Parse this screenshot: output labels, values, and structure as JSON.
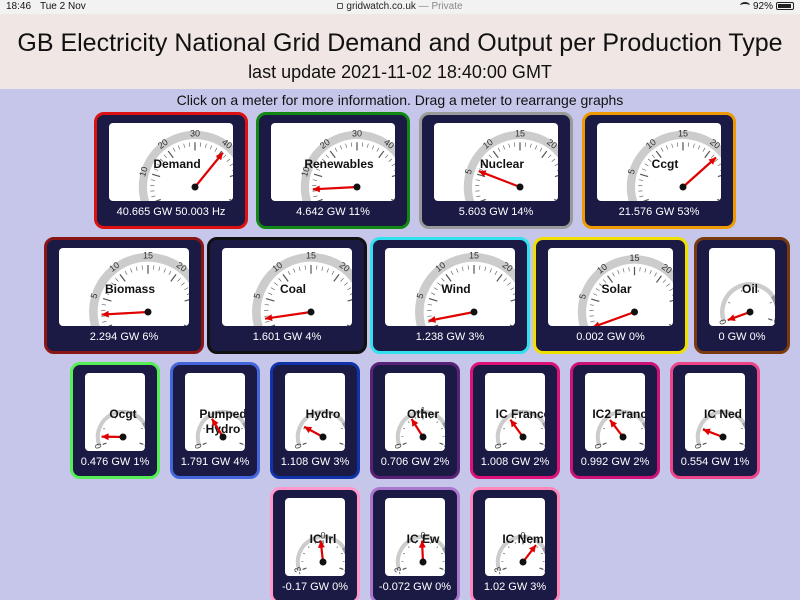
{
  "status_bar": {
    "time": "18:46",
    "date": "Tue 2 Nov",
    "url": "gridwatch.co.uk",
    "private_label": "— Private",
    "battery": "92%"
  },
  "header": {
    "title": "GB Electricity National Grid Demand and Output per Production Type",
    "subtitle": "last update 2021-11-02 18:40:00 GMT"
  },
  "instructions": "Click on a meter for more information. Drag a meter to rearrange graphs",
  "colors": {
    "page_bg": "#c5c6ea",
    "meter_bg": "#1a1a45",
    "needle": "#e00000",
    "arc_light": "#cccccc",
    "arc_dark": "#9a9a9a"
  },
  "meters": [
    {
      "id": "demand",
      "name": "Demand",
      "reading": "40.665 GW 50.003 Hz",
      "value": 40.665,
      "max": 60,
      "ticks": [
        "0",
        "10",
        "20",
        "30",
        "40",
        "50",
        "60"
      ],
      "border": "#dd1111"
    },
    {
      "id": "renewables",
      "name": "Renewables",
      "reading": "4.642 GW 11%",
      "value": 4.642,
      "max": 60,
      "ticks": [
        "0",
        "10",
        "20",
        "30",
        "40",
        "50",
        "60"
      ],
      "border": "#118811"
    },
    {
      "id": "nuclear",
      "name": "Nuclear",
      "reading": "5.603 GW 14%",
      "value": 5.603,
      "max": 30,
      "ticks": [
        "0",
        "5",
        "10",
        "15",
        "20",
        "25",
        "30"
      ],
      "border": "#9a9a9a"
    },
    {
      "id": "ccgt",
      "name": "Ccgt",
      "reading": "21.576 GW 53%",
      "value": 21.576,
      "max": 30,
      "ticks": [
        "0",
        "5",
        "10",
        "15",
        "20",
        "25",
        "30"
      ],
      "border": "#ee9900"
    },
    {
      "id": "biomass",
      "name": "Biomass",
      "reading": "2.294 GW 6%",
      "value": 2.294,
      "max": 30,
      "ticks": [
        "0",
        "5",
        "10",
        "15",
        "20",
        "25",
        "30"
      ],
      "border": "#8a1515"
    },
    {
      "id": "coal",
      "name": "Coal",
      "reading": "1.601 GW 4%",
      "value": 1.601,
      "max": 30,
      "ticks": [
        "0",
        "5",
        "10",
        "15",
        "20",
        "25",
        "30"
      ],
      "border": "#111111"
    },
    {
      "id": "wind",
      "name": "Wind",
      "reading": "1.238 GW 3%",
      "value": 1.238,
      "max": 30,
      "ticks": [
        "0",
        "5",
        "10",
        "15",
        "20",
        "25",
        "30"
      ],
      "border": "#33e0f0"
    },
    {
      "id": "solar",
      "name": "Solar",
      "reading": "0.002 GW 0%",
      "value": 0.002,
      "max": 30,
      "ticks": [
        "0",
        "5",
        "10",
        "15",
        "20",
        "25",
        "30"
      ],
      "border": "#f0e000"
    },
    {
      "id": "oil",
      "name": "Oil",
      "reading": "0 GW 0%",
      "value": 0,
      "max": 5,
      "ticks": [
        "0",
        "5"
      ],
      "border": "#7a3a10"
    },
    {
      "id": "ocgt",
      "name": "Ocgt",
      "reading": "0.476 GW 1%",
      "value": 0.476,
      "max": 5,
      "ticks": [
        "0",
        "5"
      ],
      "border": "#55ee55"
    },
    {
      "id": "pumped_hydro",
      "name": "Pumped\nHydro",
      "reading": "1.791 GW 4%",
      "value": 1.791,
      "max": 5,
      "ticks": [
        "0",
        "5"
      ],
      "border": "#4466dd"
    },
    {
      "id": "hydro",
      "name": "Hydro",
      "reading": "1.108 GW 3%",
      "value": 1.108,
      "max": 5,
      "ticks": [
        "0",
        "5"
      ],
      "border": "#1133aa"
    },
    {
      "id": "other",
      "name": "Other",
      "reading": "0.706 GW 2%",
      "value": 0.706,
      "max": 2,
      "ticks": [
        "0",
        "1",
        "2"
      ],
      "border": "#5a2277"
    },
    {
      "id": "ic_france",
      "name": "IC France",
      "reading": "1.008 GW 2%",
      "value": 1.008,
      "max": 3,
      "ticks": [
        "0",
        "3"
      ],
      "border": "#dd1177"
    },
    {
      "id": "ic2_france",
      "name": "IC2 France",
      "reading": "0.992 GW 2%",
      "value": 0.992,
      "max": 3,
      "ticks": [
        "0",
        "3"
      ],
      "border": "#cc1177"
    },
    {
      "id": "ic_ned",
      "name": "IC Ned",
      "reading": "0.554 GW 1%",
      "value": 0.554,
      "max": 3,
      "ticks": [
        "0",
        "3"
      ],
      "border": "#ee4488"
    },
    {
      "id": "ic_irl",
      "name": "IC Irl",
      "reading": "-0.17 GW 0%",
      "value": -0.17,
      "max": 3,
      "ticks": [
        "-3",
        "0",
        "3"
      ],
      "border": "#ff99cc"
    },
    {
      "id": "ic_ew",
      "name": "IC Ew",
      "reading": "-0.072 GW 0%",
      "value": -0.072,
      "max": 3,
      "ticks": [
        "-3",
        "0",
        "3"
      ],
      "border": "#aa77cc"
    },
    {
      "id": "ic_nem",
      "name": "IC Nem",
      "reading": "1.02 GW 3%",
      "value": 1.02,
      "max": 3,
      "ticks": [
        "-3",
        "0",
        "3"
      ],
      "border": "#ff88bb"
    }
  ]
}
